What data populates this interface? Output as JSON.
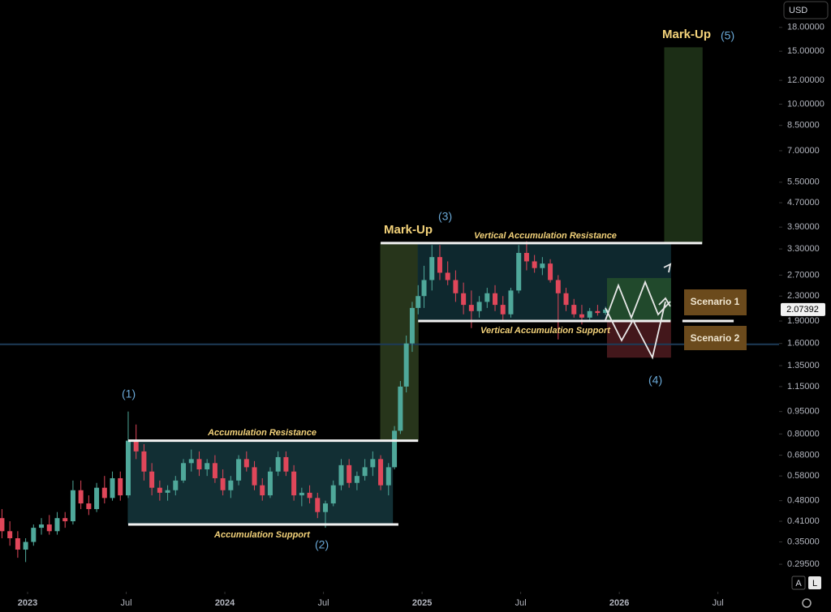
{
  "chart_data": {
    "type": "candlestick",
    "log_scale": true,
    "xlim": [
      2022.86,
      2026.81
    ],
    "ylim": [
      0.239,
      22.2
    ],
    "xticks": [
      {
        "value": 2023,
        "label": "2023"
      },
      {
        "value": 2023.5,
        "label": "Jul"
      },
      {
        "value": 2024,
        "label": "2024"
      },
      {
        "value": 2024.5,
        "label": "Jul"
      },
      {
        "value": 2025,
        "label": "2025"
      },
      {
        "value": 2025.5,
        "label": "Jul"
      },
      {
        "value": 2026,
        "label": "2026"
      },
      {
        "value": 2026.5,
        "label": "Jul"
      }
    ],
    "yticks": [
      {
        "value": 18,
        "label": "18.00000"
      },
      {
        "value": 15,
        "label": "15.00000"
      },
      {
        "value": 12,
        "label": "12.00000"
      },
      {
        "value": 10,
        "label": "10.00000"
      },
      {
        "value": 8.5,
        "label": "8.50000"
      },
      {
        "value": 7,
        "label": "7.00000"
      },
      {
        "value": 5.5,
        "label": "5.50000"
      },
      {
        "value": 4.7,
        "label": "4.70000"
      },
      {
        "value": 3.9,
        "label": "3.90000"
      },
      {
        "value": 3.3,
        "label": "3.30000"
      },
      {
        "value": 2.7,
        "label": "2.70000"
      },
      {
        "value": 2.3,
        "label": "2.30000"
      },
      {
        "value": 1.9,
        "label": "1.90000"
      },
      {
        "value": 1.6,
        "label": "1.60000"
      },
      {
        "value": 1.35,
        "label": "1.35000"
      },
      {
        "value": 1.15,
        "label": "1.15000"
      },
      {
        "value": 0.95,
        "label": "0.95000"
      },
      {
        "value": 0.8,
        "label": "0.80000"
      },
      {
        "value": 0.68,
        "label": "0.68000"
      },
      {
        "value": 0.58,
        "label": "0.58000"
      },
      {
        "value": 0.48,
        "label": "0.48000"
      },
      {
        "value": 0.41,
        "label": "0.41000"
      },
      {
        "value": 0.35,
        "label": "0.35000"
      },
      {
        "value": 0.295,
        "label": "0.29500"
      }
    ],
    "up_color": "#4fa89a",
    "down_color": "#e0475a",
    "last_price": 2.07392,
    "x": [
      2022.87,
      2022.91,
      2022.95,
      2022.99,
      2023.03,
      2023.07,
      2023.11,
      2023.15,
      2023.19,
      2023.23,
      2023.27,
      2023.31,
      2023.35,
      2023.39,
      2023.43,
      2023.47,
      2023.51,
      2023.55,
      2023.59,
      2023.63,
      2023.67,
      2023.71,
      2023.75,
      2023.79,
      2023.83,
      2023.87,
      2023.91,
      2023.95,
      2023.99,
      2024.03,
      2024.07,
      2024.11,
      2024.15,
      2024.19,
      2024.23,
      2024.27,
      2024.31,
      2024.35,
      2024.39,
      2024.43,
      2024.47,
      2024.51,
      2024.55,
      2024.59,
      2024.63,
      2024.67,
      2024.71,
      2024.75,
      2024.79,
      2024.83,
      2024.86,
      2024.89,
      2024.92,
      2024.95,
      2024.98,
      2025.01,
      2025.05,
      2025.09,
      2025.13,
      2025.17,
      2025.21,
      2025.25,
      2025.29,
      2025.33,
      2025.37,
      2025.41,
      2025.45,
      2025.49,
      2025.53,
      2025.57,
      2025.61,
      2025.65,
      2025.69,
      2025.73,
      2025.77,
      2025.81,
      2025.85,
      2025.89,
      2025.93
    ],
    "ohlc": [
      [
        0.42,
        0.45,
        0.36,
        0.38
      ],
      [
        0.38,
        0.41,
        0.34,
        0.36
      ],
      [
        0.36,
        0.38,
        0.31,
        0.33
      ],
      [
        0.33,
        0.36,
        0.3,
        0.35
      ],
      [
        0.35,
        0.4,
        0.34,
        0.39
      ],
      [
        0.39,
        0.42,
        0.37,
        0.4
      ],
      [
        0.4,
        0.43,
        0.37,
        0.38
      ],
      [
        0.38,
        0.44,
        0.37,
        0.42
      ],
      [
        0.42,
        0.44,
        0.39,
        0.41
      ],
      [
        0.41,
        0.56,
        0.4,
        0.52
      ],
      [
        0.52,
        0.56,
        0.45,
        0.47
      ],
      [
        0.47,
        0.5,
        0.43,
        0.45
      ],
      [
        0.45,
        0.55,
        0.44,
        0.53
      ],
      [
        0.53,
        0.58,
        0.47,
        0.49
      ],
      [
        0.49,
        0.6,
        0.48,
        0.57
      ],
      [
        0.57,
        0.6,
        0.48,
        0.5
      ],
      [
        0.5,
        0.95,
        0.49,
        0.76
      ],
      [
        0.76,
        0.86,
        0.66,
        0.7
      ],
      [
        0.7,
        0.74,
        0.56,
        0.6
      ],
      [
        0.6,
        0.64,
        0.5,
        0.53
      ],
      [
        0.53,
        0.56,
        0.48,
        0.51
      ],
      [
        0.51,
        0.54,
        0.48,
        0.52
      ],
      [
        0.52,
        0.58,
        0.5,
        0.56
      ],
      [
        0.56,
        0.66,
        0.55,
        0.64
      ],
      [
        0.64,
        0.71,
        0.6,
        0.66
      ],
      [
        0.66,
        0.7,
        0.58,
        0.61
      ],
      [
        0.61,
        0.66,
        0.58,
        0.64
      ],
      [
        0.64,
        0.68,
        0.55,
        0.57
      ],
      [
        0.57,
        0.61,
        0.5,
        0.52
      ],
      [
        0.52,
        0.58,
        0.49,
        0.56
      ],
      [
        0.56,
        0.68,
        0.54,
        0.66
      ],
      [
        0.66,
        0.7,
        0.6,
        0.62
      ],
      [
        0.62,
        0.65,
        0.52,
        0.54
      ],
      [
        0.54,
        0.57,
        0.48,
        0.5
      ],
      [
        0.5,
        0.62,
        0.49,
        0.6
      ],
      [
        0.6,
        0.7,
        0.58,
        0.67
      ],
      [
        0.67,
        0.7,
        0.58,
        0.6
      ],
      [
        0.6,
        0.63,
        0.48,
        0.5
      ],
      [
        0.5,
        0.53,
        0.46,
        0.51
      ],
      [
        0.51,
        0.54,
        0.47,
        0.49
      ],
      [
        0.49,
        0.51,
        0.42,
        0.44
      ],
      [
        0.44,
        0.48,
        0.39,
        0.47
      ],
      [
        0.47,
        0.56,
        0.46,
        0.54
      ],
      [
        0.54,
        0.66,
        0.52,
        0.63
      ],
      [
        0.63,
        0.66,
        0.53,
        0.55
      ],
      [
        0.55,
        0.6,
        0.52,
        0.58
      ],
      [
        0.58,
        0.66,
        0.56,
        0.62
      ],
      [
        0.62,
        0.7,
        0.58,
        0.66
      ],
      [
        0.66,
        0.68,
        0.52,
        0.54
      ],
      [
        0.54,
        0.64,
        0.5,
        0.62
      ],
      [
        0.62,
        0.85,
        0.61,
        0.82
      ],
      [
        0.82,
        1.2,
        0.8,
        1.15
      ],
      [
        1.15,
        1.7,
        1.1,
        1.6
      ],
      [
        1.6,
        2.2,
        1.5,
        2.1
      ],
      [
        2.1,
        2.5,
        2.0,
        2.3
      ],
      [
        2.3,
        2.9,
        2.1,
        2.6
      ],
      [
        2.6,
        3.4,
        2.4,
        3.1
      ],
      [
        3.1,
        3.4,
        2.6,
        2.75
      ],
      [
        2.75,
        3.0,
        2.5,
        2.6
      ],
      [
        2.6,
        2.8,
        2.2,
        2.35
      ],
      [
        2.35,
        2.55,
        2.0,
        2.15
      ],
      [
        2.15,
        2.4,
        1.8,
        2.05
      ],
      [
        2.05,
        2.3,
        1.95,
        2.2
      ],
      [
        2.2,
        2.45,
        2.1,
        2.35
      ],
      [
        2.35,
        2.5,
        2.05,
        2.15
      ],
      [
        2.15,
        2.3,
        1.9,
        2.0
      ],
      [
        2.0,
        2.45,
        1.95,
        2.4
      ],
      [
        2.4,
        3.4,
        2.35,
        3.2
      ],
      [
        3.2,
        3.5,
        2.8,
        3.0
      ],
      [
        3.0,
        3.15,
        2.75,
        2.85
      ],
      [
        2.85,
        3.1,
        2.7,
        2.95
      ],
      [
        2.95,
        3.05,
        2.55,
        2.6
      ],
      [
        2.6,
        2.7,
        1.65,
        2.35
      ],
      [
        2.35,
        2.45,
        2.05,
        2.15
      ],
      [
        2.15,
        2.25,
        1.95,
        2.0
      ],
      [
        2.0,
        2.15,
        1.85,
        1.95
      ],
      [
        1.95,
        2.1,
        1.9,
        2.05
      ],
      [
        2.05,
        2.15,
        1.98,
        2.02
      ],
      [
        2.02,
        2.12,
        1.99,
        2.07392
      ]
    ],
    "zones": [
      {
        "x": [
          2023.51,
          2024.85
        ],
        "y": [
          0.4,
          0.76
        ],
        "color": "#14343a"
      },
      {
        "x": [
          2024.79,
          2024.98
        ],
        "y": [
          0.76,
          3.45
        ],
        "color": "#2b3b1e"
      },
      {
        "x": [
          2024.98,
          2026.26
        ],
        "y": [
          1.9,
          3.45
        ],
        "color": "#0f2c33"
      },
      {
        "x": [
          2026.23,
          2026.42
        ],
        "y": [
          3.45,
          15.4
        ],
        "color": "#1f3318"
      },
      {
        "x": [
          2025.94,
          2026.26
        ],
        "y": [
          1.9,
          2.63
        ],
        "color": "#234d2c"
      },
      {
        "x": [
          2025.94,
          2026.26
        ],
        "y": [
          1.44,
          1.9
        ],
        "color": "#4a1a1e"
      }
    ],
    "levels": [
      {
        "value": 0.76,
        "x": [
          2023.51,
          2024.98
        ]
      },
      {
        "value": 0.4,
        "x": [
          2023.51,
          2024.88
        ]
      },
      {
        "value": 3.45,
        "x": [
          2024.79,
          2026.42
        ]
      },
      {
        "value": 1.9,
        "x": [
          2024.98,
          2026.26
        ]
      },
      {
        "value": 1.9,
        "x": [
          2026.32,
          2026.58
        ]
      }
    ],
    "blue_line": 1.59,
    "labels": [
      "Mark-Up",
      "(3)",
      "Mark-Up",
      "(5)",
      "(1)",
      "(2)",
      "(4)",
      "Accumulation Resistance",
      "Accumulation Support",
      "Vertical Accumulation Resistance",
      "Vertical Accumulation Support",
      "Scenario 1",
      "Scenario 2"
    ],
    "ui": {
      "currency": "USD",
      "buttons": [
        "A",
        "L"
      ]
    }
  }
}
